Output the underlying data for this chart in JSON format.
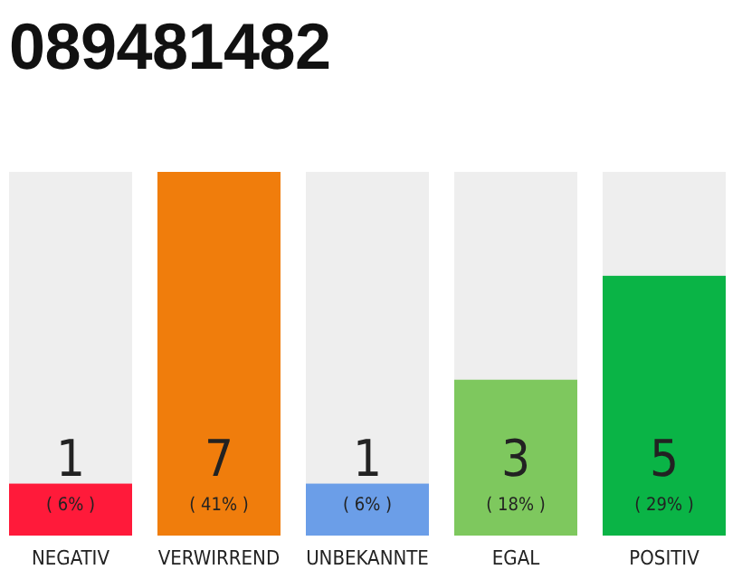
{
  "chart_data": {
    "type": "bar",
    "title": "089481482",
    "categories": [
      "NEGATIV",
      "VERWIRREND",
      "UNBEKANNTE",
      "EGAL",
      "POSITIV"
    ],
    "values": [
      1,
      7,
      1,
      3,
      5
    ],
    "colors": [
      "#ff1a3a",
      "#f07d0c",
      "#6b9ee8",
      "#7ec85e",
      "#0ab446"
    ],
    "data_labels": true,
    "annotations": [
      "( 6% )",
      "( 41% )",
      "( 6% )",
      "( 18% )",
      "( 29% )"
    ]
  }
}
